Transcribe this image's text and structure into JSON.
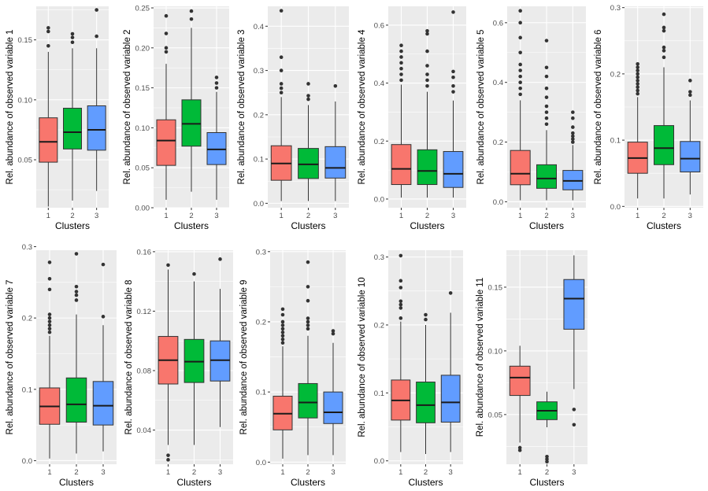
{
  "chart_data": {
    "type": "boxplot",
    "categories": [
      "1",
      "2",
      "3"
    ],
    "xlabel": "Clusters",
    "colors": {
      "1": "#F8766D",
      "2": "#00BA38",
      "3": "#619CFF",
      "panel": "#EBEBEB",
      "grid": "#FFFFFF",
      "box_line": "#333333",
      "median_line": "#1A1A1A"
    },
    "panels": [
      {
        "ylabel": "Rel. abundance of observed variable 1",
        "ylim": [
          0.01,
          0.178
        ],
        "yticks": [
          0.05,
          0.1,
          0.15
        ],
        "ytick_labels": [
          "0.05",
          "0.10",
          "0.15"
        ],
        "boxes": [
          {
            "cluster": "1",
            "min": 0.011,
            "q1": 0.048,
            "median": 0.065,
            "q3": 0.085,
            "max": 0.14,
            "outliers": [
              0.145,
              0.157,
              0.16
            ]
          },
          {
            "cluster": "2",
            "min": 0.016,
            "q1": 0.059,
            "median": 0.073,
            "q3": 0.093,
            "max": 0.143,
            "outliers": [
              0.148,
              0.152,
              0.155
            ]
          },
          {
            "cluster": "3",
            "min": 0.024,
            "q1": 0.058,
            "median": 0.075,
            "q3": 0.095,
            "max": 0.143,
            "outliers": [
              0.153,
              0.175
            ]
          }
        ]
      },
      {
        "ylabel": "Rel. abundance of observed variable 2",
        "ylim": [
          0.0,
          0.252
        ],
        "yticks": [
          0.0,
          0.05,
          0.1,
          0.15,
          0.2,
          0.25
        ],
        "ytick_labels": [
          "0.00",
          "0.05",
          "0.10",
          "0.15",
          "0.20",
          "0.25"
        ],
        "boxes": [
          {
            "cluster": "1",
            "min": 0.01,
            "q1": 0.053,
            "median": 0.084,
            "q3": 0.11,
            "max": 0.18,
            "outliers": [
              0.195,
              0.2,
              0.218,
              0.24
            ]
          },
          {
            "cluster": "2",
            "min": 0.02,
            "q1": 0.077,
            "median": 0.105,
            "q3": 0.135,
            "max": 0.225,
            "outliers": [
              0.236,
              0.246
            ]
          },
          {
            "cluster": "3",
            "min": 0.01,
            "q1": 0.054,
            "median": 0.073,
            "q3": 0.094,
            "max": 0.145,
            "outliers": [
              0.15,
              0.156,
              0.163
            ]
          }
        ]
      },
      {
        "ylabel": "Rel. abundance of observed variable 3",
        "ylim": [
          -0.01,
          0.445
        ],
        "yticks": [
          0.0,
          0.1,
          0.2,
          0.3,
          0.4
        ],
        "ytick_labels": [
          "0.0",
          "0.1",
          "0.2",
          "0.3",
          "0.4"
        ],
        "boxes": [
          {
            "cluster": "1",
            "min": 0.005,
            "q1": 0.052,
            "median": 0.09,
            "q3": 0.13,
            "max": 0.24,
            "outliers": [
              0.25,
              0.26,
              0.27,
              0.3,
              0.33,
              0.435
            ]
          },
          {
            "cluster": "2",
            "min": 0.005,
            "q1": 0.056,
            "median": 0.088,
            "q3": 0.124,
            "max": 0.222,
            "outliers": [
              0.235,
              0.243,
              0.27
            ]
          },
          {
            "cluster": "3",
            "min": 0.005,
            "q1": 0.057,
            "median": 0.08,
            "q3": 0.128,
            "max": 0.23,
            "outliers": [
              0.265
            ]
          }
        ]
      },
      {
        "ylabel": "Rel. abundance of observed variable 4",
        "ylim": [
          -0.03,
          0.665
        ],
        "yticks": [
          0.0,
          0.2,
          0.4,
          0.6
        ],
        "ytick_labels": [
          "0.0",
          "0.2",
          "0.4",
          "0.6"
        ],
        "boxes": [
          {
            "cluster": "1",
            "min": 0.005,
            "q1": 0.05,
            "median": 0.104,
            "q3": 0.188,
            "max": 0.395,
            "outliers": [
              0.41,
              0.43,
              0.45,
              0.47,
              0.49,
              0.51,
              0.53
            ]
          },
          {
            "cluster": "2",
            "min": 0.005,
            "q1": 0.05,
            "median": 0.097,
            "q3": 0.17,
            "max": 0.37,
            "outliers": [
              0.39,
              0.41,
              0.43,
              0.46,
              0.51,
              0.57,
              0.58
            ]
          },
          {
            "cluster": "3",
            "min": 0.005,
            "q1": 0.04,
            "median": 0.087,
            "q3": 0.164,
            "max": 0.34,
            "outliers": [
              0.37,
              0.39,
              0.42,
              0.44,
              0.645
            ]
          }
        ]
      },
      {
        "ylabel": "Rel. abundance of observed variable 5",
        "ylim": [
          -0.02,
          0.655
        ],
        "yticks": [
          0.0,
          0.2,
          0.4,
          0.6
        ],
        "ytick_labels": [
          "0.0",
          "0.2",
          "0.4",
          "0.6"
        ],
        "boxes": [
          {
            "cluster": "1",
            "min": 0.005,
            "q1": 0.057,
            "median": 0.094,
            "q3": 0.172,
            "max": 0.34,
            "outliers": [
              0.36,
              0.38,
              0.4,
              0.42,
              0.44,
              0.46,
              0.5,
              0.55,
              0.6,
              0.64
            ]
          },
          {
            "cluster": "2",
            "min": 0.005,
            "q1": 0.045,
            "median": 0.078,
            "q3": 0.124,
            "max": 0.24,
            "outliers": [
              0.26,
              0.28,
              0.3,
              0.32,
              0.35,
              0.38,
              0.42,
              0.45,
              0.54
            ]
          },
          {
            "cluster": "3",
            "min": 0.005,
            "q1": 0.04,
            "median": 0.07,
            "q3": 0.105,
            "max": 0.19,
            "outliers": [
              0.2,
              0.21,
              0.22,
              0.23,
              0.25,
              0.28,
              0.3
            ]
          }
        ]
      },
      {
        "ylabel": "Rel. abundance of observed variable 6",
        "ylim": [
          -0.002,
          0.302
        ],
        "yticks": [
          0.0,
          0.1,
          0.2,
          0.3
        ],
        "ytick_labels": [
          "0.0",
          "0.1",
          "0.2",
          "0.3"
        ],
        "boxes": [
          {
            "cluster": "1",
            "min": 0.012,
            "q1": 0.05,
            "median": 0.073,
            "q3": 0.097,
            "max": 0.165,
            "outliers": [
              0.17,
              0.175,
              0.18,
              0.185,
              0.19,
              0.195,
              0.2,
              0.205,
              0.21,
              0.215
            ]
          },
          {
            "cluster": "2",
            "min": 0.012,
            "q1": 0.063,
            "median": 0.088,
            "q3": 0.122,
            "max": 0.21,
            "outliers": [
              0.225,
              0.235,
              0.24,
              0.265,
              0.27,
              0.29
            ]
          },
          {
            "cluster": "3",
            "min": 0.018,
            "q1": 0.052,
            "median": 0.072,
            "q3": 0.098,
            "max": 0.16,
            "outliers": [
              0.168,
              0.173,
              0.19
            ]
          }
        ]
      },
      {
        "ylabel": "Rel. abundance of observed variable 7",
        "ylim": [
          -0.005,
          0.295
        ],
        "yticks": [
          0.0,
          0.1,
          0.2,
          0.3
        ],
        "ytick_labels": [
          "0.0",
          "0.1",
          "0.2",
          "0.3"
        ],
        "boxes": [
          {
            "cluster": "1",
            "min": 0.003,
            "q1": 0.051,
            "median": 0.076,
            "q3": 0.102,
            "max": 0.175,
            "outliers": [
              0.18,
              0.185,
              0.19,
              0.195,
              0.2,
              0.205,
              0.24,
              0.255,
              0.278
            ]
          },
          {
            "cluster": "2",
            "min": 0.01,
            "q1": 0.054,
            "median": 0.079,
            "q3": 0.116,
            "max": 0.205,
            "outliers": [
              0.225,
              0.232,
              0.237,
              0.244,
              0.29
            ]
          },
          {
            "cluster": "3",
            "min": 0.013,
            "q1": 0.05,
            "median": 0.077,
            "q3": 0.111,
            "max": 0.19,
            "outliers": [
              0.202,
              0.275
            ]
          }
        ]
      },
      {
        "ylabel": "Rel. abundance of observed variable 8",
        "ylim": [
          0.017,
          0.161
        ],
        "yticks": [
          0.04,
          0.08,
          0.12,
          0.16
        ],
        "ytick_labels": [
          "0.04",
          "0.08",
          "0.12",
          "0.16"
        ],
        "boxes": [
          {
            "cluster": "1",
            "min": 0.03,
            "q1": 0.071,
            "median": 0.087,
            "q3": 0.103,
            "max": 0.148,
            "outliers": [
              0.02,
              0.023,
              0.151
            ]
          },
          {
            "cluster": "2",
            "min": 0.03,
            "q1": 0.072,
            "median": 0.086,
            "q3": 0.101,
            "max": 0.14,
            "outliers": [
              0.145
            ]
          },
          {
            "cluster": "3",
            "min": 0.042,
            "q1": 0.073,
            "median": 0.087,
            "q3": 0.1,
            "max": 0.135,
            "outliers": [
              0.155
            ]
          }
        ]
      },
      {
        "ylabel": "Rel. abundance of observed variable 9",
        "ylim": [
          -0.003,
          0.302
        ],
        "yticks": [
          0.0,
          0.1,
          0.2,
          0.3
        ],
        "ytick_labels": [
          "0.0",
          "0.1",
          "0.2",
          "0.3"
        ],
        "boxes": [
          {
            "cluster": "1",
            "min": 0.005,
            "q1": 0.046,
            "median": 0.069,
            "q3": 0.094,
            "max": 0.165,
            "outliers": [
              0.17,
              0.175,
              0.18,
              0.185,
              0.19,
              0.195,
              0.2,
              0.21,
              0.218
            ]
          },
          {
            "cluster": "2",
            "min": 0.01,
            "q1": 0.063,
            "median": 0.085,
            "q3": 0.112,
            "max": 0.18,
            "outliers": [
              0.19,
              0.195,
              0.2,
              0.205,
              0.23,
              0.25,
              0.285
            ]
          },
          {
            "cluster": "3",
            "min": 0.01,
            "q1": 0.055,
            "median": 0.071,
            "q3": 0.1,
            "max": 0.17,
            "outliers": [
              0.183,
              0.187
            ]
          }
        ]
      },
      {
        "ylabel": "Rel. abundance of observed variable 10",
        "ylim": [
          -0.005,
          0.31
        ],
        "yticks": [
          0.0,
          0.1,
          0.2,
          0.3
        ],
        "ytick_labels": [
          "0.0",
          "0.1",
          "0.2",
          "0.3"
        ],
        "boxes": [
          {
            "cluster": "1",
            "min": 0.013,
            "q1": 0.06,
            "median": 0.089,
            "q3": 0.119,
            "max": 0.205,
            "outliers": [
              0.21,
              0.225,
              0.23,
              0.235,
              0.255,
              0.265,
              0.302
            ]
          },
          {
            "cluster": "2",
            "min": 0.01,
            "q1": 0.056,
            "median": 0.082,
            "q3": 0.116,
            "max": 0.2,
            "outliers": [
              0.208,
              0.215
            ]
          },
          {
            "cluster": "3",
            "min": 0.013,
            "q1": 0.057,
            "median": 0.086,
            "q3": 0.126,
            "max": 0.218,
            "outliers": [
              0.247
            ]
          }
        ]
      },
      {
        "ylabel": "Rel. abundance of observed variable 11",
        "ylim": [
          0.011,
          0.179
        ],
        "yticks": [
          0.05,
          0.1,
          0.15
        ],
        "ytick_labels": [
          "0.05",
          "0.10",
          "0.15"
        ],
        "boxes": [
          {
            "cluster": "1",
            "min": 0.028,
            "q1": 0.065,
            "median": 0.079,
            "q3": 0.088,
            "max": 0.104,
            "outliers": [
              0.022,
              0.024
            ]
          },
          {
            "cluster": "2",
            "min": 0.04,
            "q1": 0.046,
            "median": 0.053,
            "q3": 0.06,
            "max": 0.068,
            "outliers": [
              0.013,
              0.015,
              0.017
            ]
          },
          {
            "cluster": "3",
            "min": 0.07,
            "q1": 0.117,
            "median": 0.141,
            "q3": 0.156,
            "max": 0.175,
            "outliers": [
              0.042,
              0.054
            ]
          }
        ]
      }
    ]
  }
}
